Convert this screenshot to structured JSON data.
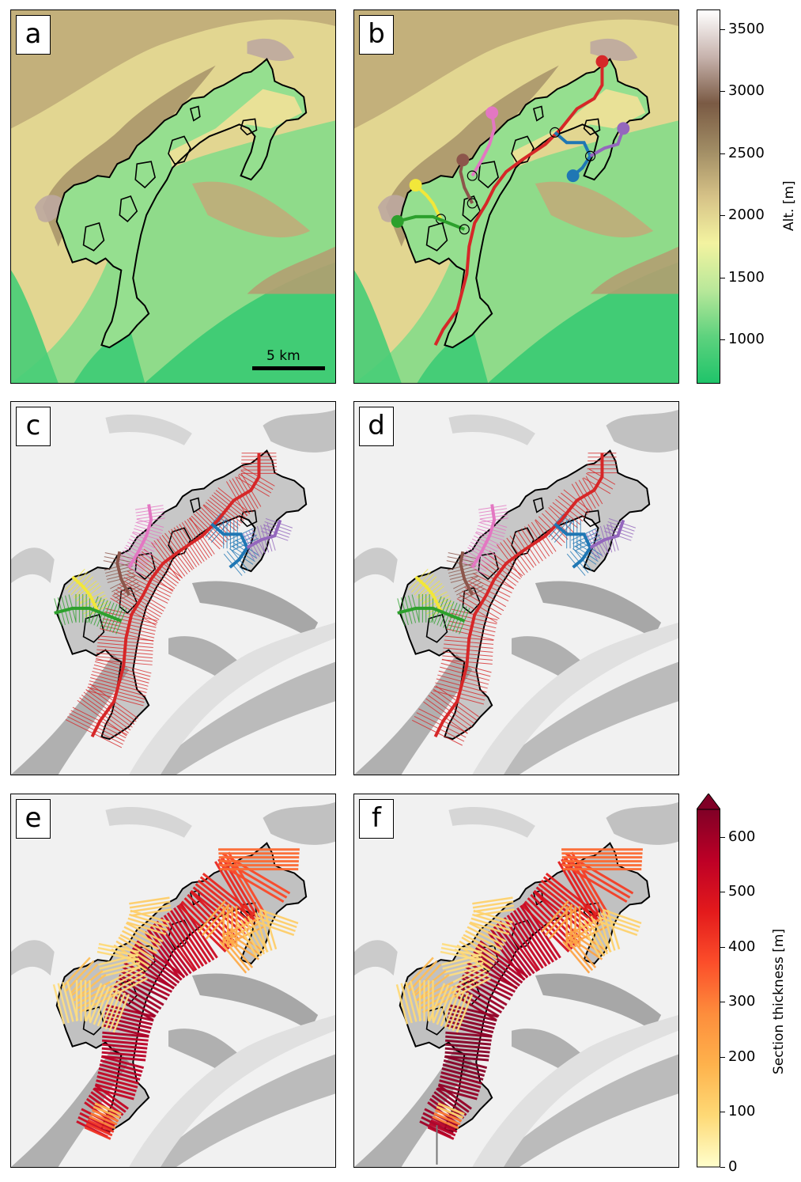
{
  "panels": [
    {
      "id": "a",
      "label": "a",
      "kind": "elevation"
    },
    {
      "id": "b",
      "label": "b",
      "kind": "elevation-flowlines"
    },
    {
      "id": "c",
      "label": "c",
      "kind": "hillshade-sections"
    },
    {
      "id": "d",
      "label": "d",
      "kind": "hillshade-sections"
    },
    {
      "id": "e",
      "label": "e",
      "kind": "hillshade-thickness"
    },
    {
      "id": "f",
      "label": "f",
      "kind": "hillshade-thickness"
    }
  ],
  "scale_bar": {
    "label": "5 km"
  },
  "altitude_colorbar": {
    "title": "Alt. [m]",
    "ticks": [
      "3500",
      "3000",
      "2500",
      "2000",
      "1500",
      "1000"
    ],
    "tick_values": [
      3500,
      3000,
      2500,
      2000,
      1500,
      1000
    ],
    "range": [
      650,
      3650
    ],
    "colors": [
      "#1fc46a",
      "#5ed27e",
      "#b9e89a",
      "#f3f3a0",
      "#d6c287",
      "#a08c64",
      "#7a5a44",
      "#c7b3ad",
      "#ffffff"
    ]
  },
  "thickness_colorbar": {
    "title": "Section thickness [m]",
    "ticks": [
      "600",
      "500",
      "400",
      "300",
      "200",
      "100",
      "0"
    ],
    "tick_values": [
      600,
      500,
      400,
      300,
      200,
      100,
      0
    ],
    "range": [
      0,
      650
    ],
    "extend": "max",
    "colors": [
      "#ffffcc",
      "#fed976",
      "#feb24c",
      "#fd8d3c",
      "#fc4e2a",
      "#e31a1c",
      "#bd0026",
      "#800026"
    ]
  },
  "flowline_colors": {
    "main": "#d62728",
    "pink": "#e377c2",
    "brown": "#8c564b",
    "yellow": "#f2e73a",
    "green": "#2ca02c",
    "blue": "#1f77b4",
    "purple": "#9467bd"
  },
  "thickness_section_values": {
    "e": {
      "main_trunk": [
        520,
        540,
        560,
        580,
        600,
        580,
        560,
        520,
        480,
        440,
        380,
        330
      ],
      "snout": [
        420,
        300,
        180
      ],
      "tributaries": [
        120,
        90,
        150,
        80,
        200
      ]
    },
    "f": {
      "main_trunk": [
        600,
        620,
        640,
        630,
        610,
        590,
        570,
        540,
        500,
        460,
        400,
        330
      ],
      "snout": [
        560,
        300,
        120
      ],
      "tributaries": [
        110,
        80,
        160,
        90,
        220
      ]
    }
  }
}
